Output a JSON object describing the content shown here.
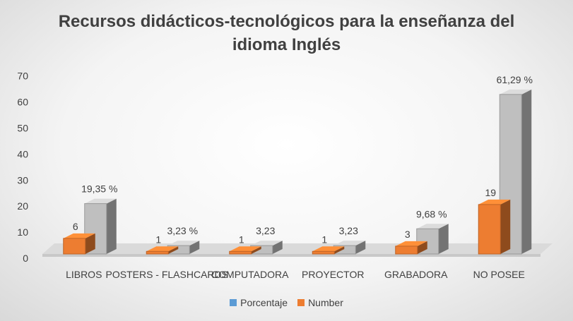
{
  "title": {
    "line1": "Recursos didácticos-tecnológicos para la enseñanza del",
    "line2": "idioma Inglés"
  },
  "legend": {
    "porcentaje": "Porcentaje",
    "number": "Number"
  },
  "colors": {
    "porcentaje_legend": "#5b9bd5",
    "number": "#ed7d31",
    "porcentaje_bar": "#bfbfbf",
    "text": "#404040"
  },
  "chart_data": {
    "type": "bar",
    "title": "Recursos didácticos-tecnológicos para la enseñanza del idioma Inglés",
    "categories": [
      "LIBROS",
      "POSTERS - FLASHCARDS",
      "COMPUTADORA",
      "PROYECTOR",
      "GRABADORA",
      "NO POSEE"
    ],
    "series": [
      {
        "name": "Number",
        "values": [
          6,
          1,
          1,
          1,
          3,
          19
        ],
        "labels": [
          "6",
          "1",
          "1",
          "1",
          "3",
          "19"
        ]
      },
      {
        "name": "Porcentaje",
        "values": [
          19.35,
          3.23,
          3.23,
          3.23,
          9.68,
          61.29
        ],
        "labels": [
          "19,35 %",
          "3,23 %",
          "3,23",
          "3,23",
          "9,68 %",
          "61,29 %"
        ]
      }
    ],
    "yticks": [
      "0",
      "10",
      "20",
      "30",
      "40",
      "50",
      "60",
      "70"
    ],
    "ylim": [
      0,
      70
    ],
    "grid": false,
    "legend_position": "bottom",
    "style": "3d-column"
  }
}
